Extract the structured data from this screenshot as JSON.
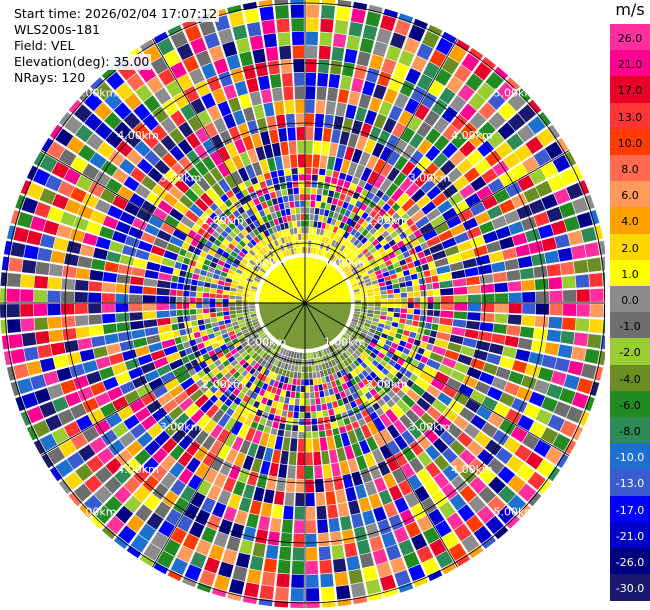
{
  "info": {
    "start_time": "Start time: 2026/02/04 17:07:12",
    "site": "WLS200s-181",
    "field": "Field: VEL",
    "elevation": "Elevation(deg): 35.00",
    "nrays": "NRays: 120"
  },
  "range_labels": [
    "1.00km",
    "2.00km",
    "3.00km",
    "4.00km",
    "5.00km"
  ],
  "colorbar": {
    "unit": "m/s",
    "ticks": [
      "26.0",
      "21.0",
      "17.0",
      "13.0",
      "10.0",
      "8.0",
      "6.0",
      "4.0",
      "2.0",
      "1.0",
      "0.0",
      "-1.0",
      "-2.0",
      "-4.0",
      "-6.0",
      "-8.0",
      "-10.0",
      "-13.0",
      "-17.0",
      "-21.0",
      "-26.0",
      "-30.0"
    ],
    "colors": [
      "#ff2fa0",
      "#ff0090",
      "#e8002a",
      "#ff3535",
      "#ff3c00",
      "#ff6a50",
      "#ff9a5a",
      "#ffa000",
      "#ffd700",
      "#ffff00",
      "#8c8c8c",
      "#6e6e6e",
      "#9acd32",
      "#6b8e23",
      "#228b22",
      "#2e8b57",
      "#1e6fd0",
      "#3a5bd0",
      "#0000ff",
      "#0000cd",
      "#000080",
      "#191970"
    ]
  }
}
